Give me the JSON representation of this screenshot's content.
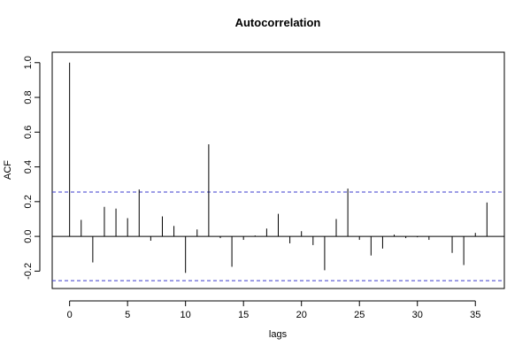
{
  "chart_data": {
    "type": "bar",
    "title": "Autocorrelation",
    "xlabel": "lags",
    "ylabel": "ACF",
    "xlim": [
      -1.5,
      37.5
    ],
    "ylim": [
      -0.3,
      1.06
    ],
    "x_ticks": [
      0,
      5,
      10,
      15,
      20,
      25,
      30,
      35
    ],
    "y_ticks": [
      -0.2,
      0.0,
      0.2,
      0.4,
      0.6,
      0.8,
      1.0
    ],
    "y_tick_labels": [
      "-0.2",
      "0.0",
      "0.2",
      "0.4",
      "0.6",
      "0.8",
      "1.0"
    ],
    "confidence_bounds": [
      0.255,
      -0.255
    ],
    "grid": false,
    "colors": {
      "bars": "#000000",
      "zero_line": "#000000",
      "confidence": "#3b3bcc",
      "frame": "#000000"
    },
    "lags": [
      0,
      1,
      2,
      3,
      4,
      5,
      6,
      7,
      8,
      9,
      10,
      11,
      12,
      13,
      14,
      15,
      16,
      17,
      18,
      19,
      20,
      21,
      22,
      23,
      24,
      25,
      26,
      27,
      28,
      29,
      30,
      31,
      32,
      33,
      34,
      35,
      36
    ],
    "values": [
      1.0,
      0.095,
      -0.15,
      0.17,
      0.16,
      0.105,
      0.27,
      -0.025,
      0.115,
      0.06,
      -0.21,
      0.04,
      0.53,
      -0.01,
      -0.175,
      -0.02,
      0.005,
      0.045,
      0.13,
      -0.04,
      0.03,
      -0.05,
      -0.195,
      0.1,
      0.275,
      -0.02,
      -0.11,
      -0.07,
      0.01,
      -0.01,
      -0.005,
      -0.02,
      0.0,
      -0.095,
      -0.165,
      0.02,
      0.195
    ]
  }
}
